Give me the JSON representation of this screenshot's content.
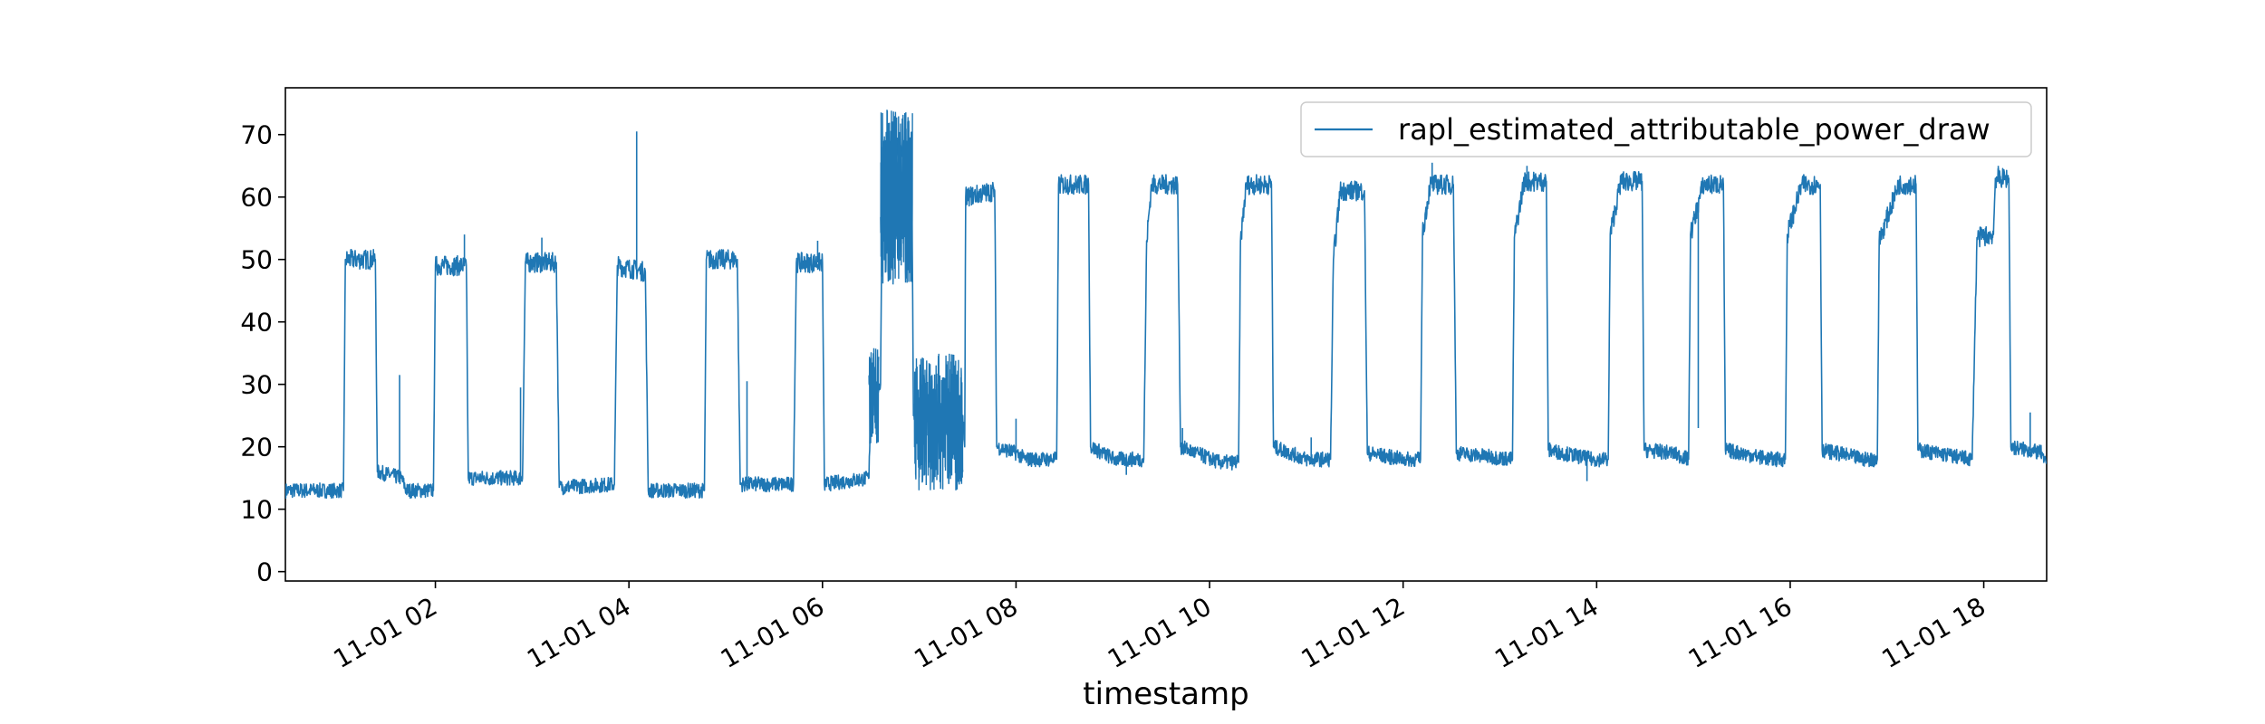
{
  "chart_data": {
    "type": "line",
    "title": "",
    "xlabel": "timestamp",
    "ylabel": "",
    "ylim": [
      -1.5,
      77.5
    ],
    "xlim_hours": [
      0.45,
      18.65
    ],
    "y_ticks": [
      0,
      10,
      20,
      30,
      40,
      50,
      60,
      70
    ],
    "x_ticks": [
      {
        "hour": 2,
        "label": "11-01 02"
      },
      {
        "hour": 4,
        "label": "11-01 04"
      },
      {
        "hour": 6,
        "label": "11-01 06"
      },
      {
        "hour": 8,
        "label": "11-01 08"
      },
      {
        "hour": 10,
        "label": "11-01 10"
      },
      {
        "hour": 12,
        "label": "11-01 12"
      },
      {
        "hour": 14,
        "label": "11-01 14"
      },
      {
        "hour": 16,
        "label": "11-01 16"
      },
      {
        "hour": 18,
        "label": "11-01 18"
      }
    ],
    "grid": false,
    "legend_position": "top-right",
    "series": [
      {
        "name": "rapl_estimated_attributable_power_draw",
        "color": "#1f77b4",
        "x_unit": "hours since 11-01 00:00",
        "points": [
          [
            0.45,
            13
          ],
          [
            1.05,
            13
          ],
          [
            1.07,
            50
          ],
          [
            1.38,
            50
          ],
          [
            1.4,
            16
          ],
          [
            1.65,
            15
          ],
          [
            1.7,
            13
          ],
          [
            1.98,
            13
          ],
          [
            2.0,
            49
          ],
          [
            2.32,
            49
          ],
          [
            2.34,
            15
          ],
          [
            2.9,
            15
          ],
          [
            2.93,
            49.5
          ],
          [
            3.25,
            49.5
          ],
          [
            3.28,
            13.5
          ],
          [
            3.85,
            14
          ],
          [
            3.88,
            49
          ],
          [
            4.17,
            48
          ],
          [
            4.2,
            13
          ],
          [
            4.78,
            13
          ],
          [
            4.8,
            50
          ],
          [
            5.12,
            50
          ],
          [
            5.15,
            14
          ],
          [
            5.7,
            14
          ],
          [
            5.73,
            49.5
          ],
          [
            6.0,
            49.5
          ],
          [
            6.02,
            14
          ],
          [
            6.48,
            15
          ],
          [
            6.5,
            28
          ],
          [
            6.6,
            30
          ],
          [
            6.62,
            68
          ],
          [
            6.92,
            68
          ],
          [
            6.94,
            25
          ],
          [
            7.45,
            25
          ],
          [
            7.47,
            20
          ],
          [
            7.48,
            60
          ],
          [
            7.78,
            61
          ],
          [
            7.8,
            20
          ],
          [
            8.0,
            19
          ],
          [
            8.1,
            18
          ],
          [
            8.42,
            18
          ],
          [
            8.44,
            62
          ],
          [
            8.75,
            62
          ],
          [
            8.77,
            20
          ],
          [
            9.02,
            18
          ],
          [
            9.32,
            18
          ],
          [
            9.35,
            53
          ],
          [
            9.4,
            62
          ],
          [
            9.67,
            62
          ],
          [
            9.7,
            20
          ],
          [
            10.1,
            17.5
          ],
          [
            10.3,
            17.5
          ],
          [
            10.32,
            53
          ],
          [
            10.38,
            62
          ],
          [
            10.64,
            62
          ],
          [
            10.66,
            20
          ],
          [
            11.0,
            18
          ],
          [
            11.25,
            18
          ],
          [
            11.28,
            50
          ],
          [
            11.35,
            61
          ],
          [
            11.6,
            61
          ],
          [
            11.63,
            19
          ],
          [
            12.0,
            18
          ],
          [
            12.18,
            18
          ],
          [
            12.2,
            54
          ],
          [
            12.28,
            62
          ],
          [
            12.52,
            62
          ],
          [
            12.55,
            19
          ],
          [
            13.13,
            18
          ],
          [
            13.15,
            53.5
          ],
          [
            13.25,
            62.5
          ],
          [
            13.48,
            62.5
          ],
          [
            13.5,
            19.5
          ],
          [
            13.95,
            18
          ],
          [
            14.12,
            18
          ],
          [
            14.14,
            54
          ],
          [
            14.25,
            62.5
          ],
          [
            14.47,
            62.5
          ],
          [
            14.49,
            19.5
          ],
          [
            14.78,
            19
          ],
          [
            14.95,
            18
          ],
          [
            14.97,
            54
          ],
          [
            15.1,
            62
          ],
          [
            15.31,
            62
          ],
          [
            15.33,
            19.5
          ],
          [
            15.8,
            18
          ],
          [
            15.95,
            18
          ],
          [
            15.97,
            54
          ],
          [
            16.12,
            62
          ],
          [
            16.31,
            62
          ],
          [
            16.33,
            19.5
          ],
          [
            16.76,
            18
          ],
          [
            16.9,
            18
          ],
          [
            16.92,
            53
          ],
          [
            17.12,
            62
          ],
          [
            17.3,
            62
          ],
          [
            17.32,
            19.5
          ],
          [
            17.88,
            18
          ],
          [
            17.93,
            53.5
          ],
          [
            18.1,
            54
          ],
          [
            18.12,
            63
          ],
          [
            18.26,
            63
          ],
          [
            18.28,
            20
          ],
          [
            18.6,
            19
          ],
          [
            18.62,
            17.5
          ],
          [
            18.65,
            17.5
          ]
        ],
        "spikes": [
          [
            1.63,
            31.5
          ],
          [
            2.3,
            54
          ],
          [
            2.88,
            29.5
          ],
          [
            3.1,
            53.5
          ],
          [
            4.08,
            70.5
          ],
          [
            5.22,
            30.5
          ],
          [
            5.95,
            53
          ],
          [
            8.0,
            24.5
          ],
          [
            9.14,
            15.5
          ],
          [
            9.72,
            23
          ],
          [
            11.05,
            21.5
          ],
          [
            12.3,
            65.5
          ],
          [
            13.28,
            65
          ],
          [
            13.9,
            14.5
          ],
          [
            15.05,
            23
          ],
          [
            18.15,
            65
          ],
          [
            18.48,
            25.5
          ]
        ],
        "noisy_segments": [
          {
            "x": [
              6.6,
              6.93
            ],
            "y_range": [
              46,
              74
            ]
          },
          {
            "x": [
              6.95,
              7.45
            ],
            "y_range": [
              13,
              35
            ]
          },
          {
            "x": [
              6.48,
              6.58
            ],
            "y_range": [
              20,
              36
            ]
          }
        ]
      }
    ]
  }
}
